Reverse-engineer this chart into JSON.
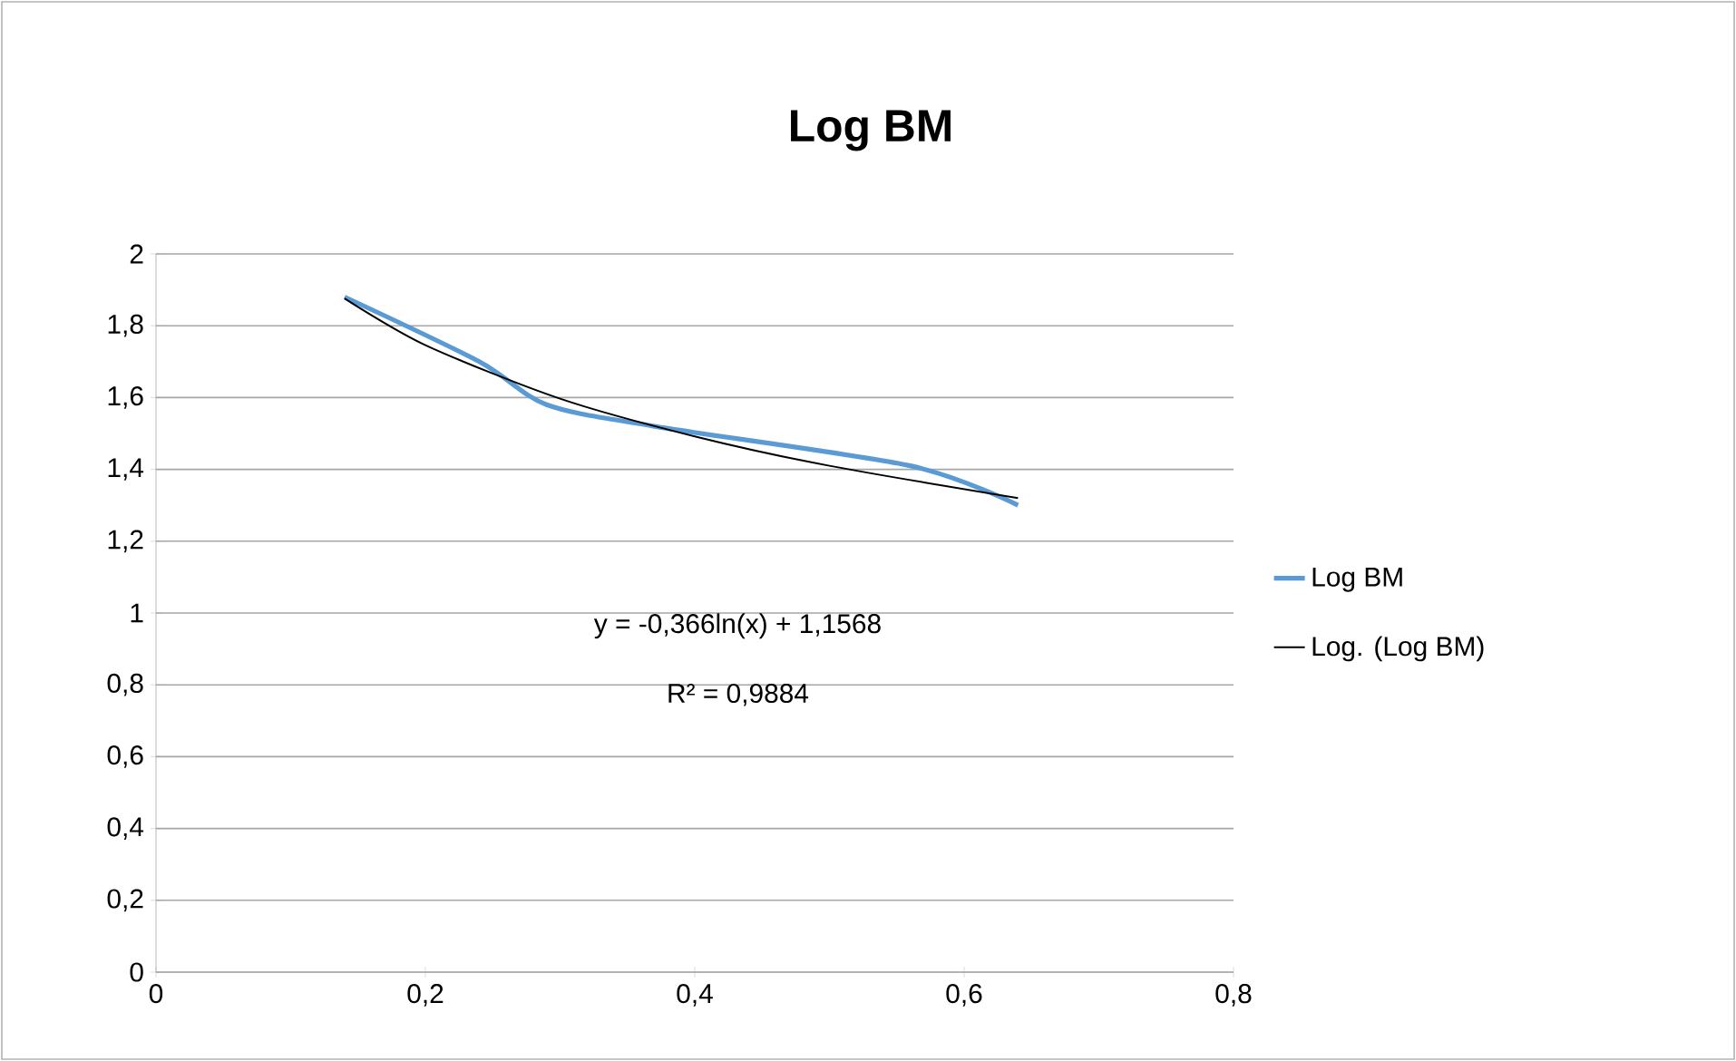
{
  "chart_data": {
    "type": "line",
    "title": "Log BM",
    "xlim": [
      0,
      0.8
    ],
    "xticks": [
      0,
      {
        "value": 0.2,
        "label": "0,2"
      },
      {
        "value": 0.4,
        "label": "0,4"
      },
      {
        "value": 0.6,
        "label": "0,6"
      },
      {
        "value": 0.8,
        "label": "0,8"
      }
    ],
    "ylim": [
      0,
      2
    ],
    "yticks": [
      0,
      {
        "value": 0.2,
        "label": "0,2"
      },
      {
        "value": 0.4,
        "label": "0,4"
      },
      {
        "value": 0.6,
        "label": "0,6"
      },
      {
        "value": 0.8,
        "label": "0,8"
      },
      1,
      {
        "value": 1.2,
        "label": "1,2"
      },
      {
        "value": 1.4,
        "label": "1,4"
      },
      {
        "value": 1.6,
        "label": "1,6"
      },
      {
        "value": 1.8,
        "label": "1,8"
      },
      2
    ],
    "grid": "y",
    "legend": "right",
    "series": [
      {
        "name": "Log BM",
        "color": "#5b9bd5",
        "x": [
          0.14,
          0.24,
          0.29,
          0.37,
          0.56,
          0.64
        ],
        "values": [
          1.88,
          1.7,
          1.58,
          1.52,
          1.41,
          1.3
        ]
      },
      {
        "name": "Log. (Log BM)",
        "color": "#000000",
        "x": [
          0.14,
          0.2,
          0.3,
          0.4,
          0.5,
          0.64
        ],
        "values": [
          1.876,
          1.746,
          1.597,
          1.492,
          1.41,
          1.32
        ]
      }
    ],
    "annotations": [
      "y = -0,366ln(x) + 1,1568",
      "R² = 0,9884"
    ]
  }
}
